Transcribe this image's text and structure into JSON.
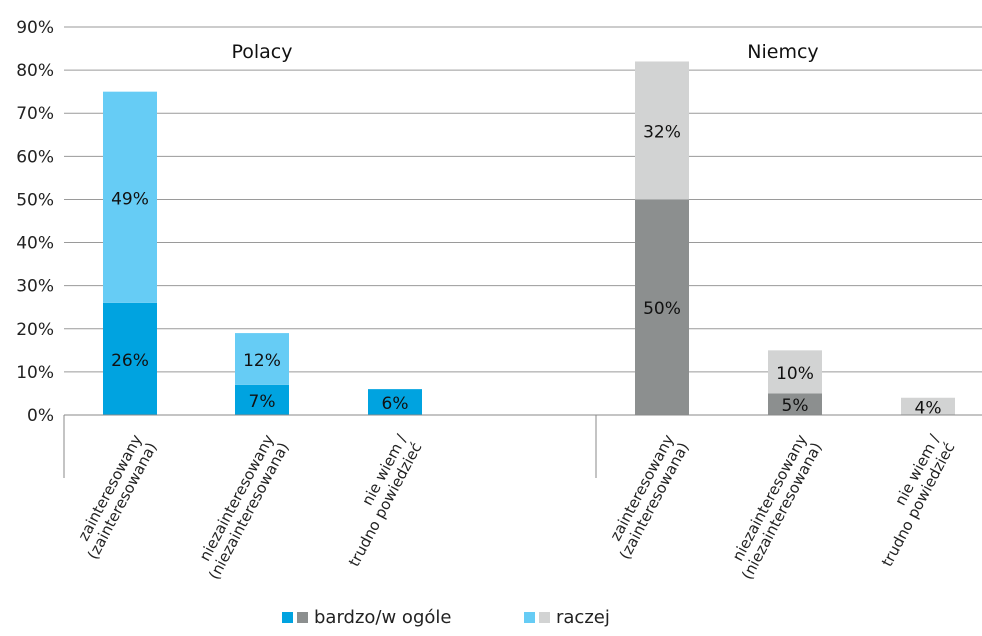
{
  "chart_data": {
    "type": "bar",
    "stacked": true,
    "ylim": [
      0,
      90
    ],
    "yticks": [
      0,
      10,
      20,
      30,
      40,
      50,
      60,
      70,
      80,
      90
    ],
    "ytick_labels": [
      "0%",
      "10%",
      "20%",
      "30%",
      "40%",
      "50%",
      "60%",
      "70%",
      "80%",
      "90%"
    ],
    "grid": true,
    "legend_position": "bottom",
    "groups": [
      {
        "title": "Polacy",
        "colors": {
          "bottom": "#00a3e0",
          "top": "#66ccf5"
        },
        "categories": [
          "zainteresowany\n(zainteresowana)",
          "niezainteresowany\n(niezainteresowana)",
          "nie wiem /\ntrudno powiedzieć"
        ],
        "bottom": [
          26,
          7,
          6
        ],
        "top": [
          49,
          12,
          null
        ]
      },
      {
        "title": "Niemcy",
        "colors": {
          "bottom": "#8c8f8f",
          "top": "#d2d3d3"
        },
        "categories": [
          "zainteresowany\n(zainteresowana)",
          "niezainteresowany\n(niezainteresowana)",
          "nie wiem /\ntrudno powiedzieć"
        ],
        "bottom": [
          50,
          5,
          null
        ],
        "top": [
          32,
          10,
          4
        ]
      }
    ],
    "legend": [
      {
        "label": "bardzo/w ogóle",
        "swatches": [
          "#00a3e0",
          "#8c8f8f"
        ]
      },
      {
        "label": "raczej",
        "swatches": [
          "#66ccf5",
          "#d2d3d3"
        ]
      }
    ]
  }
}
